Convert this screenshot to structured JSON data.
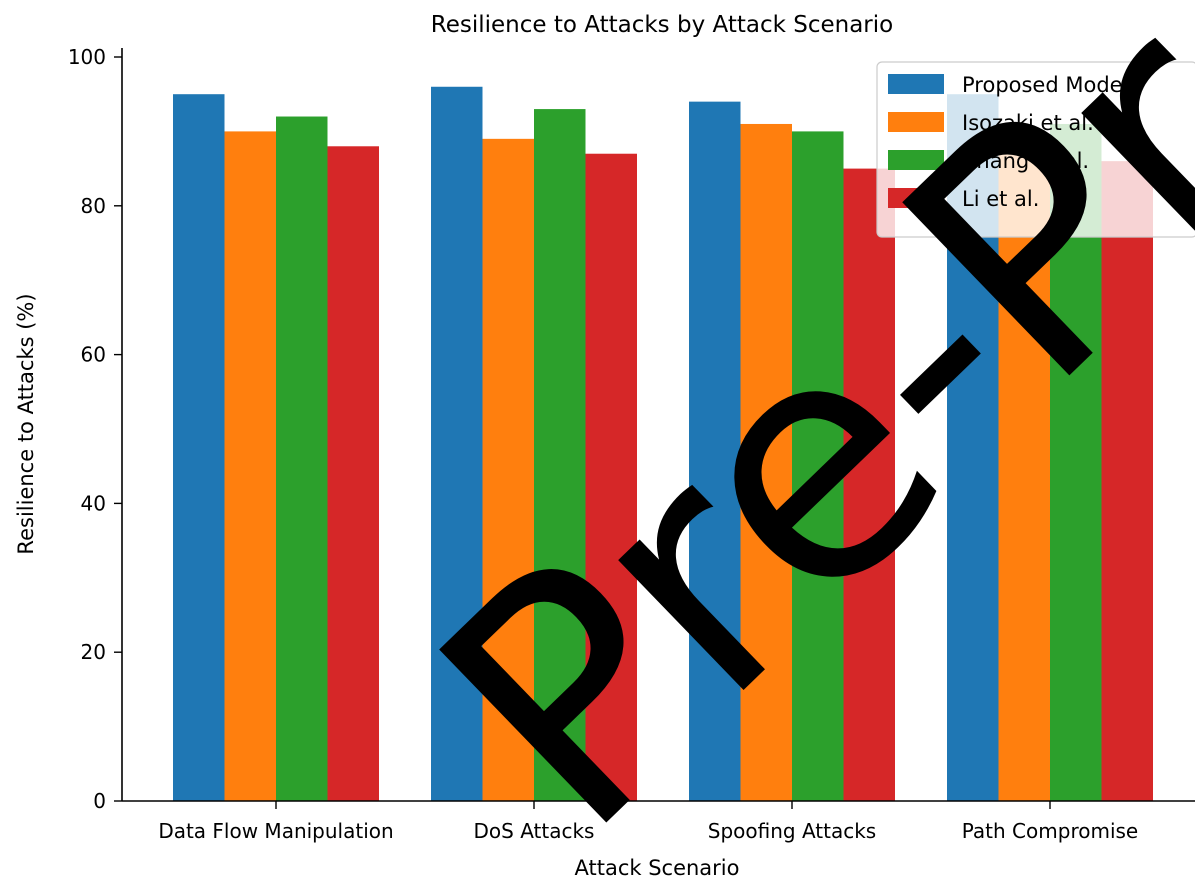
{
  "chart_data": {
    "type": "bar",
    "title": "Resilience to Attacks by Attack Scenario",
    "xlabel": "Attack Scenario",
    "ylabel": "Resilience to Attacks (%)",
    "categories": [
      "Data Flow Manipulation",
      "DoS Attacks",
      "Spoofing Attacks",
      "Path Compromise"
    ],
    "series": [
      {
        "name": "Proposed Model",
        "color": "#1f77b4",
        "values": [
          95,
          96,
          94,
          95
        ]
      },
      {
        "name": "Isozaki et al.",
        "color": "#ff7f0e",
        "values": [
          90,
          89,
          91,
          88
        ]
      },
      {
        "name": "Zhang et al.",
        "color": "#2ca02c",
        "values": [
          92,
          93,
          90,
          91
        ]
      },
      {
        "name": "Li et al.",
        "color": "#d62728",
        "values": [
          88,
          87,
          85,
          86
        ]
      }
    ],
    "ylim": [
      0,
      100
    ],
    "yticks": [
      0,
      20,
      40,
      60,
      80,
      100
    ],
    "grid": false,
    "legend_position": "top-right"
  },
  "watermark": {
    "text": "Pre-Proof"
  }
}
